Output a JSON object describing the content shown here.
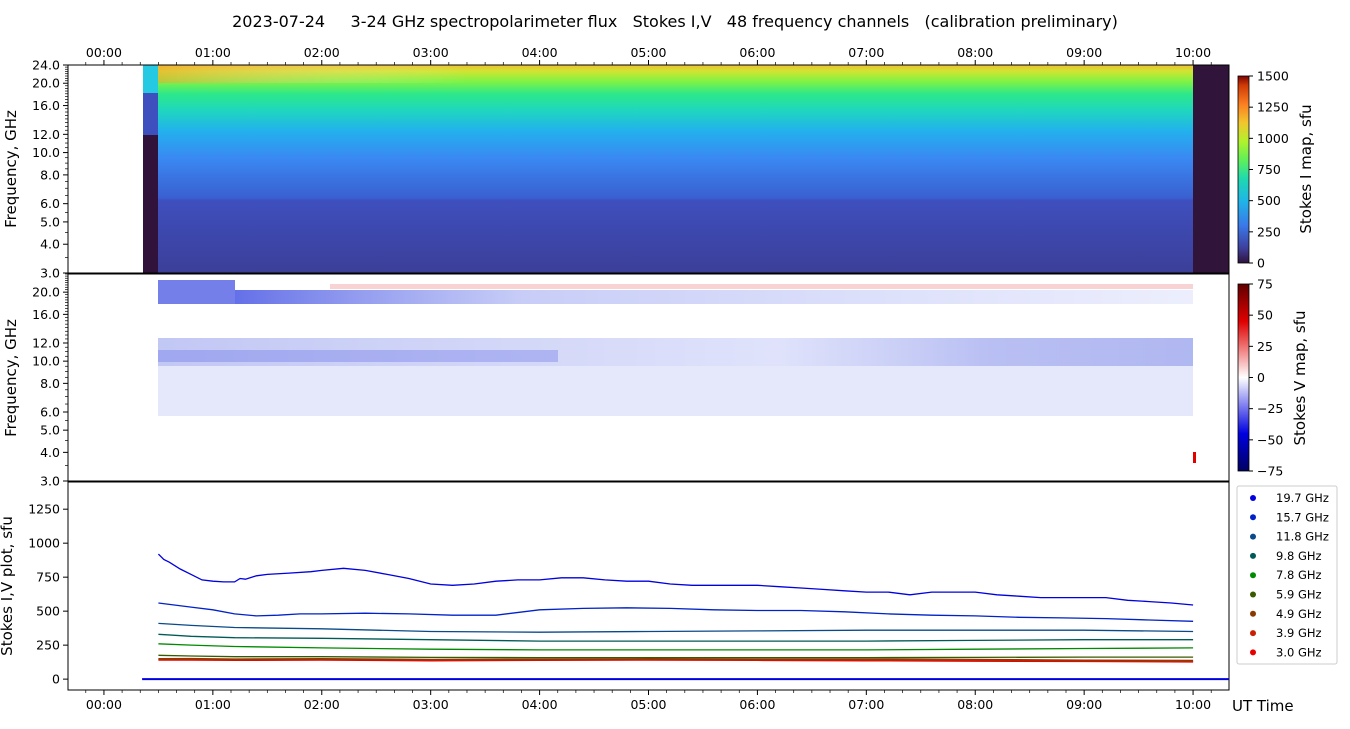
{
  "chart_data": {
    "title": "2023-07-24     3-24 GHz spectropolarimeter flux   Stokes I,V   48 frequency channels   (calibration preliminary)",
    "x_axis": {
      "label": "UT Time",
      "ticks": [
        "00:00",
        "01:00",
        "02:00",
        "03:00",
        "04:00",
        "05:00",
        "06:00",
        "07:00",
        "08:00",
        "09:00",
        "10:00"
      ],
      "tick_hours": [
        0,
        1,
        2,
        3,
        4,
        5,
        6,
        7,
        8,
        9,
        10
      ],
      "range_hours": [
        -0.33,
        10.33
      ]
    },
    "panels": [
      {
        "type": "heatmap",
        "name": "stokes_i_map",
        "ylabel": "Frequency, GHz",
        "yscale": "log",
        "ylim": [
          3.0,
          24.0
        ],
        "yticks": [
          "3.0",
          "4.0",
          "5.0",
          "6.0",
          "8.0",
          "10.0",
          "12.0",
          "16.0",
          "20.0",
          "24.0"
        ],
        "yticks_values": [
          3,
          4,
          5,
          6,
          8,
          10,
          12,
          16,
          20,
          24
        ],
        "colorbar": {
          "label": "Stokes I map, sfu",
          "range": [
            0,
            1500
          ],
          "ticks": [
            "0",
            "250",
            "500",
            "750",
            "1000",
            "1250",
            "1500"
          ]
        },
        "data_window_hours": [
          0.43,
          10.0
        ]
      },
      {
        "type": "heatmap",
        "name": "stokes_v_map",
        "ylabel": "Frequency, GHz",
        "yscale": "log",
        "ylim": [
          3.0,
          24.0
        ],
        "yticks": [
          "3.0",
          "4.0",
          "5.0",
          "6.0",
          "8.0",
          "10.0",
          "12.0",
          "16.0",
          "20.0"
        ],
        "yticks_values": [
          3,
          4,
          5,
          6,
          8,
          10,
          12,
          16,
          20
        ],
        "colorbar": {
          "label": "Stokes V map, sfu",
          "range": [
            -75,
            75
          ],
          "ticks": [
            "75",
            "50",
            "25",
            "0",
            "−25",
            "−50",
            "−75"
          ]
        },
        "data_window_hours": [
          0.43,
          10.0
        ]
      },
      {
        "type": "line",
        "name": "stokes_iv_plot",
        "ylabel": "Stokes I,V plot, sfu",
        "ylim": [
          -80,
          1450
        ],
        "yticks": [
          "0",
          "250",
          "500",
          "750",
          "1000",
          "1250"
        ],
        "yticks_values": [
          0,
          250,
          500,
          750,
          1000,
          1250
        ]
      }
    ],
    "series": [
      {
        "name": "19.7 GHz",
        "color": "#0000e0",
        "x": [
          0.5,
          0.55,
          0.6,
          0.7,
          0.8,
          0.9,
          1.0,
          1.1,
          1.2,
          1.25,
          1.3,
          1.4,
          1.5,
          1.7,
          1.9,
          2.0,
          2.2,
          2.4,
          2.6,
          2.8,
          3.0,
          3.2,
          3.4,
          3.6,
          3.8,
          4.0,
          4.2,
          4.4,
          4.6,
          4.8,
          5.0,
          5.2,
          5.4,
          5.6,
          5.8,
          6.0,
          6.2,
          6.4,
          6.6,
          6.8,
          7.0,
          7.2,
          7.4,
          7.6,
          7.8,
          8.0,
          8.2,
          8.4,
          8.6,
          8.8,
          9.0,
          9.2,
          9.4,
          9.6,
          9.8,
          10.0
        ],
        "y": [
          920,
          880,
          860,
          810,
          770,
          730,
          720,
          715,
          715,
          740,
          735,
          760,
          770,
          780,
          790,
          800,
          815,
          800,
          770,
          740,
          700,
          690,
          700,
          720,
          730,
          730,
          745,
          745,
          730,
          720,
          720,
          700,
          690,
          690,
          690,
          690,
          680,
          670,
          660,
          650,
          640,
          640,
          620,
          640,
          640,
          640,
          620,
          610,
          600,
          600,
          600,
          600,
          580,
          570,
          560,
          545
        ]
      },
      {
        "name": "15.7 GHz",
        "color": "#0022c8",
        "x": [
          0.5,
          0.6,
          0.8,
          1.0,
          1.2,
          1.4,
          1.6,
          1.8,
          2.0,
          2.4,
          2.8,
          3.2,
          3.6,
          4.0,
          4.4,
          4.8,
          5.2,
          5.6,
          6.0,
          6.4,
          6.8,
          7.2,
          7.6,
          8.0,
          8.4,
          8.8,
          9.2,
          9.6,
          10.0
        ],
        "y": [
          560,
          550,
          530,
          510,
          480,
          465,
          470,
          480,
          480,
          485,
          480,
          470,
          470,
          510,
          520,
          525,
          520,
          510,
          505,
          505,
          495,
          480,
          470,
          465,
          455,
          450,
          445,
          435,
          425
        ]
      },
      {
        "name": "11.8 GHz",
        "color": "#0a4a8a",
        "x": [
          0.5,
          0.8,
          1.2,
          2.0,
          3.0,
          4.0,
          5.0,
          6.0,
          7.0,
          8.0,
          9.0,
          10.0
        ],
        "y": [
          410,
          395,
          380,
          370,
          350,
          345,
          350,
          355,
          360,
          360,
          360,
          350
        ]
      },
      {
        "name": "9.8 GHz",
        "color": "#005a55",
        "x": [
          0.5,
          0.8,
          1.2,
          2.0,
          3.0,
          4.0,
          5.0,
          6.0,
          7.0,
          8.0,
          9.0,
          10.0
        ],
        "y": [
          330,
          315,
          305,
          300,
          290,
          280,
          280,
          280,
          280,
          285,
          290,
          290
        ]
      },
      {
        "name": "7.8 GHz",
        "color": "#008a00",
        "x": [
          0.5,
          0.8,
          1.2,
          2.0,
          3.0,
          4.0,
          5.0,
          6.0,
          7.0,
          8.0,
          9.0,
          10.0
        ],
        "y": [
          260,
          250,
          240,
          230,
          220,
          215,
          215,
          215,
          215,
          220,
          225,
          230
        ]
      },
      {
        "name": "5.9 GHz",
        "color": "#3a5a00",
        "x": [
          0.5,
          0.8,
          1.2,
          2.0,
          3.0,
          4.0,
          5.0,
          6.0,
          7.0,
          8.0,
          9.0,
          10.0
        ],
        "y": [
          175,
          170,
          165,
          165,
          160,
          158,
          158,
          158,
          158,
          160,
          162,
          162
        ]
      },
      {
        "name": "4.9 GHz",
        "color": "#8a3a00",
        "x": [
          0.5,
          0.8,
          1.2,
          2.0,
          3.0,
          4.0,
          5.0,
          6.0,
          7.0,
          8.0,
          9.0,
          10.0
        ],
        "y": [
          150,
          152,
          148,
          150,
          145,
          148,
          150,
          148,
          148,
          145,
          140,
          138
        ]
      },
      {
        "name": "3.9 GHz",
        "color": "#c82000",
        "x": [
          0.5,
          0.8,
          1.2,
          2.0,
          3.0,
          4.0,
          5.0,
          6.0,
          7.0,
          8.0,
          9.0,
          10.0
        ],
        "y": [
          145,
          145,
          142,
          145,
          140,
          142,
          145,
          142,
          140,
          138,
          135,
          130
        ]
      },
      {
        "name": "3.0 GHz",
        "color": "#e80000",
        "x": [
          0.5,
          0.8,
          1.2,
          2.0,
          3.0,
          4.0,
          5.0,
          6.0,
          7.0,
          8.0,
          9.0,
          10.0
        ],
        "y": [
          140,
          140,
          138,
          140,
          135,
          138,
          140,
          138,
          135,
          132,
          130,
          126
        ]
      }
    ]
  }
}
